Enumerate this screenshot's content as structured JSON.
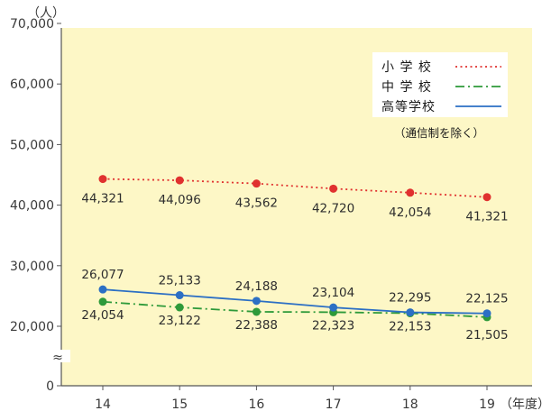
{
  "colors": {
    "plot_bg": "#fdf7c6",
    "elementary": "#e0312f",
    "junior": "#2e9a3a",
    "high": "#2c6fc4",
    "axis": "#555555"
  },
  "chart_data": {
    "type": "line",
    "y_unit": "（人）",
    "x_unit": "（年度）",
    "categories": [
      "14",
      "15",
      "16",
      "17",
      "18",
      "19"
    ],
    "y_ticks": [
      "0",
      "20,000",
      "30,000",
      "40,000",
      "50,000",
      "60,000",
      "70,000"
    ],
    "ylim": [
      0,
      70000
    ],
    "axis_break": "≈",
    "axis_break_between": [
      0,
      20000
    ],
    "grid": false,
    "legend_position": "top-right",
    "legend_note": "（通信制を除く）",
    "series": [
      {
        "name": "小 学 校",
        "key": "elementary",
        "style": "dotted",
        "values": [
          44321,
          44096,
          43562,
          42720,
          42054,
          41321
        ],
        "labels": [
          "44,321",
          "44,096",
          "43,562",
          "42,720",
          "42,054",
          "41,321"
        ]
      },
      {
        "name": "中 学 校",
        "key": "junior",
        "style": "dashdot",
        "values": [
          24054,
          23122,
          22388,
          22323,
          22153,
          21505
        ],
        "labels": [
          "24,054",
          "23,122",
          "22,388",
          "22,323",
          "22,153",
          "21,505"
        ]
      },
      {
        "name": "高等学校",
        "key": "high",
        "style": "solid",
        "values": [
          26077,
          25133,
          24188,
          23104,
          22295,
          22125
        ],
        "labels": [
          "26,077",
          "25,133",
          "24,188",
          "23,104",
          "22,295",
          "22,125"
        ]
      }
    ]
  }
}
